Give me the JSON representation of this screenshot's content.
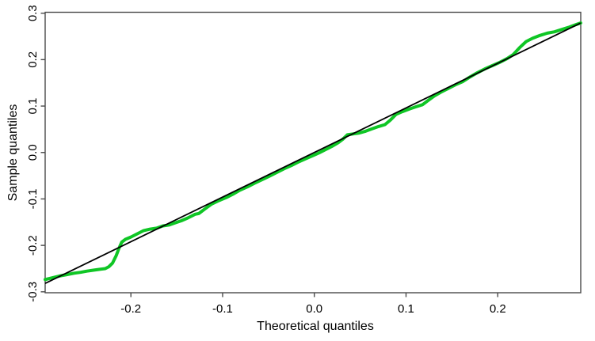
{
  "figure": {
    "background": "#ffffff"
  },
  "chart_data": {
    "type": "line",
    "title": "",
    "xlabel": "Theoretical quantiles",
    "ylabel": "Sample quantiles",
    "xlim": [
      -0.2935,
      0.2905
    ],
    "ylim": [
      -0.302,
      0.302
    ],
    "grid": false,
    "legend_position": "none",
    "x_ticks": {
      "values": [
        -0.2,
        -0.1,
        0.0,
        0.1,
        0.2
      ],
      "labels": [
        "-0.2",
        "-0.1",
        "0.0",
        "0.1",
        "0.2"
      ]
    },
    "y_ticks": {
      "values": [
        0.3,
        0.2,
        0.1,
        0.0,
        -0.1,
        -0.2,
        -0.3
      ],
      "labels": [
        "0.3",
        "0.2",
        "0.1",
        "0.0",
        "-0.1",
        "-0.2",
        "-0.3"
      ]
    },
    "box_color": "#4a4a4a",
    "text_color": "#000000",
    "series": [
      {
        "name": "sample-quantiles",
        "color": "#0fc625",
        "width": 4,
        "points": [
          [
            -0.2935,
            -0.2735
          ],
          [
            -0.286,
            -0.27
          ],
          [
            -0.278,
            -0.266
          ],
          [
            -0.27,
            -0.263
          ],
          [
            -0.262,
            -0.26
          ],
          [
            -0.255,
            -0.258
          ],
          [
            -0.248,
            -0.2555
          ],
          [
            -0.241,
            -0.2535
          ],
          [
            -0.234,
            -0.2515
          ],
          [
            -0.228,
            -0.25
          ],
          [
            -0.224,
            -0.246
          ],
          [
            -0.22,
            -0.238
          ],
          [
            -0.216,
            -0.222
          ],
          [
            -0.213,
            -0.206
          ],
          [
            -0.21,
            -0.193
          ],
          [
            -0.206,
            -0.187
          ],
          [
            -0.2,
            -0.182
          ],
          [
            -0.193,
            -0.175
          ],
          [
            -0.186,
            -0.168
          ],
          [
            -0.179,
            -0.165
          ],
          [
            -0.172,
            -0.163
          ],
          [
            -0.165,
            -0.158
          ],
          [
            -0.158,
            -0.156
          ],
          [
            -0.151,
            -0.151
          ],
          [
            -0.145,
            -0.147
          ],
          [
            -0.138,
            -0.141
          ],
          [
            -0.13,
            -0.133
          ],
          [
            -0.126,
            -0.1315
          ],
          [
            -0.119,
            -0.121
          ],
          [
            -0.112,
            -0.111
          ],
          [
            -0.104,
            -0.1035
          ],
          [
            -0.096,
            -0.097
          ],
          [
            -0.089,
            -0.09
          ],
          [
            -0.081,
            -0.081
          ],
          [
            -0.073,
            -0.074
          ],
          [
            -0.065,
            -0.066
          ],
          [
            -0.057,
            -0.0585
          ],
          [
            -0.049,
            -0.051
          ],
          [
            -0.041,
            -0.043
          ],
          [
            -0.033,
            -0.035
          ],
          [
            -0.025,
            -0.028
          ],
          [
            -0.017,
            -0.02
          ],
          [
            -0.009,
            -0.013
          ],
          [
            -0.002,
            -0.007
          ],
          [
            0.005,
            -0.001
          ],
          [
            0.012,
            0.006
          ],
          [
            0.019,
            0.013
          ],
          [
            0.026,
            0.021
          ],
          [
            0.031,
            0.0285
          ],
          [
            0.036,
            0.038
          ],
          [
            0.042,
            0.04
          ],
          [
            0.049,
            0.042
          ],
          [
            0.056,
            0.046
          ],
          [
            0.063,
            0.051
          ],
          [
            0.07,
            0.056
          ],
          [
            0.077,
            0.06
          ],
          [
            0.083,
            0.07
          ],
          [
            0.089,
            0.082
          ],
          [
            0.096,
            0.088
          ],
          [
            0.104,
            0.094
          ],
          [
            0.111,
            0.0985
          ],
          [
            0.118,
            0.103
          ],
          [
            0.124,
            0.112
          ],
          [
            0.131,
            0.122
          ],
          [
            0.138,
            0.13
          ],
          [
            0.146,
            0.138
          ],
          [
            0.154,
            0.146
          ],
          [
            0.162,
            0.153
          ],
          [
            0.17,
            0.163
          ],
          [
            0.178,
            0.172
          ],
          [
            0.186,
            0.18
          ],
          [
            0.194,
            0.187
          ],
          [
            0.202,
            0.194
          ],
          [
            0.21,
            0.202
          ],
          [
            0.217,
            0.211
          ],
          [
            0.224,
            0.226
          ],
          [
            0.231,
            0.239
          ],
          [
            0.238,
            0.246
          ],
          [
            0.246,
            0.252
          ],
          [
            0.254,
            0.257
          ],
          [
            0.262,
            0.26
          ],
          [
            0.27,
            0.265
          ],
          [
            0.278,
            0.27
          ],
          [
            0.285,
            0.275
          ],
          [
            0.2905,
            0.279
          ]
        ]
      },
      {
        "name": "reference-line",
        "color": "#000000",
        "width": 1.8,
        "points": [
          [
            -0.2935,
            -0.2818
          ],
          [
            0.2905,
            0.2789
          ]
        ]
      }
    ]
  }
}
